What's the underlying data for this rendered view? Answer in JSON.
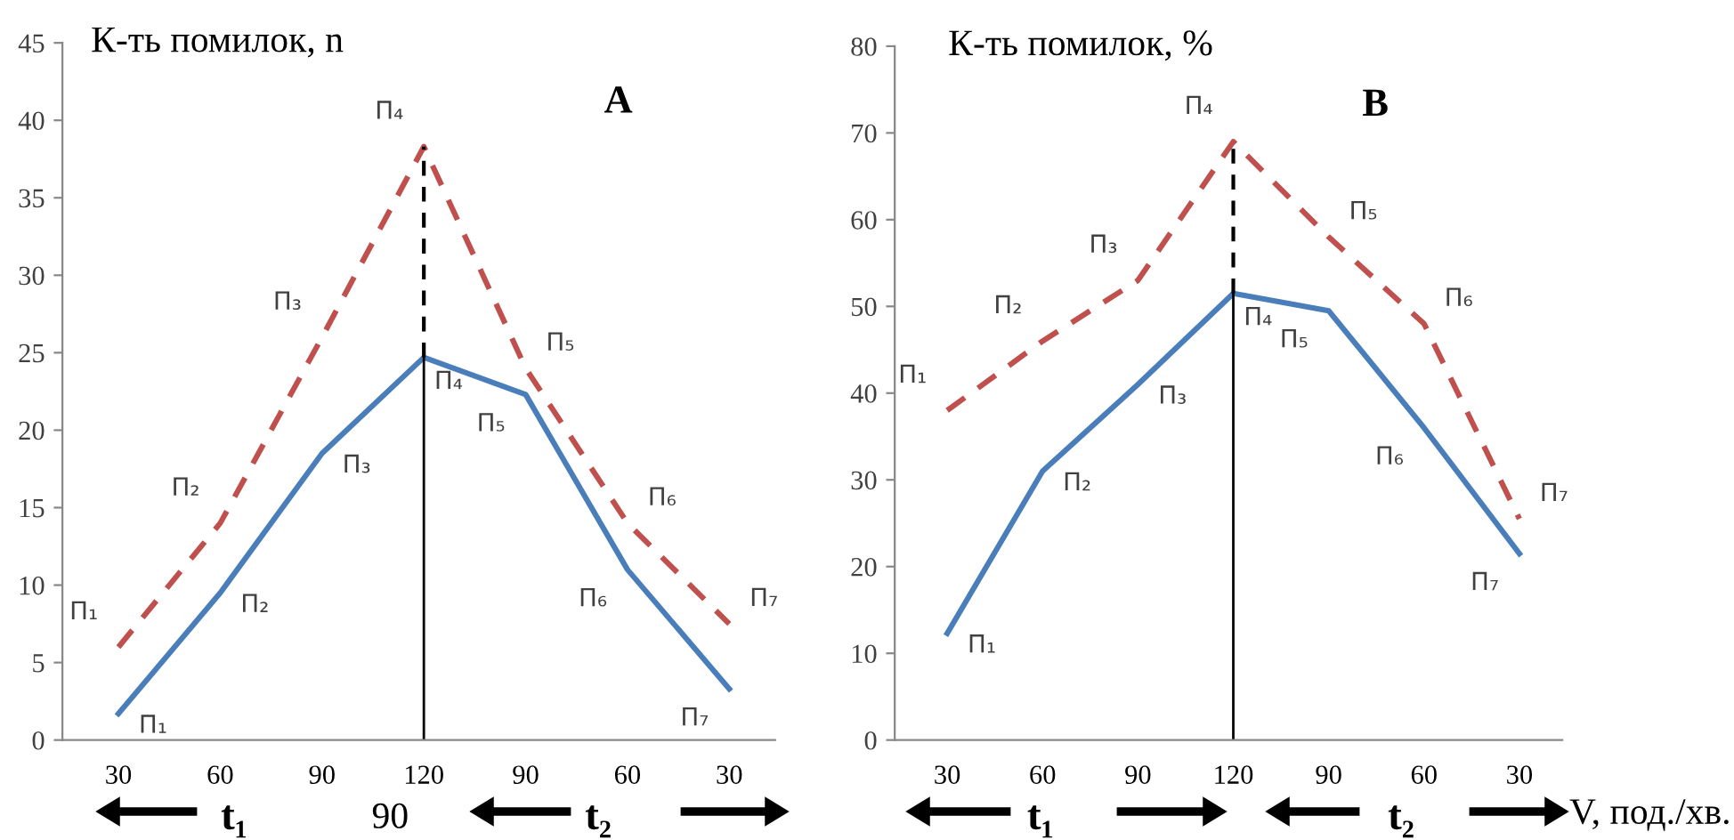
{
  "chart_data": [
    {
      "type": "line",
      "ylabel": "К-ть помилок, n",
      "categories": [
        "30",
        "60",
        "90",
        "120",
        "90",
        "60",
        "30"
      ],
      "ylim": [
        0,
        45
      ],
      "yticks": [
        0,
        5,
        10,
        15,
        20,
        25,
        30,
        35,
        40,
        45
      ],
      "grid": false,
      "legend": false,
      "series": [
        {
          "color": "#c0504d",
          "line_style": "dashed",
          "values": [
            6,
            14,
            26,
            38.3,
            24,
            14,
            7.5
          ],
          "value_labels": [
            "П₁",
            "П₂",
            "П₃",
            "П₄",
            "П₅",
            "П₆",
            "П₇"
          ]
        },
        {
          "color": "#4a7ebb",
          "line_style": "solid",
          "values": [
            1.7,
            9.5,
            18.5,
            24.7,
            22.3,
            11,
            3.3
          ],
          "value_labels": [
            "П₁",
            "П₂",
            "П₃",
            "П₄",
            "П₅",
            "П₆",
            "П₇"
          ]
        }
      ],
      "ref_lines": [
        {
          "axis": "x",
          "value": "120",
          "color": "#000000"
        }
      ],
      "annotations": [
        "А",
        "t₁",
        "90",
        "t₂"
      ]
    },
    {
      "type": "line",
      "ylabel": "К-ть помилок, %",
      "xlabel": "V, под./хв.",
      "categories": [
        "30",
        "60",
        "90",
        "120",
        "90",
        "60",
        "30"
      ],
      "ylim": [
        0,
        80
      ],
      "yticks": [
        0,
        10,
        20,
        30,
        40,
        50,
        60,
        70,
        80
      ],
      "grid": false,
      "legend": false,
      "series": [
        {
          "color": "#c0504d",
          "line_style": "dashed",
          "values": [
            38,
            46,
            53,
            69,
            58,
            48,
            25.5
          ],
          "value_labels": [
            "П₁",
            "П₂",
            "П₃",
            "П₄",
            "П₅",
            "П₆",
            "П₇"
          ]
        },
        {
          "color": "#4a7ebb",
          "line_style": "solid",
          "values": [
            12.3,
            31,
            41,
            51.5,
            49.5,
            36,
            21.5
          ],
          "value_labels": [
            "П₁",
            "П₂",
            "П₃",
            "П₄",
            "П₅",
            "П₆",
            "П₇"
          ]
        }
      ],
      "ref_lines": [
        {
          "axis": "x",
          "value": "120",
          "color": "#000000"
        }
      ],
      "annotations": [
        "В",
        "t₁",
        "t₂"
      ]
    }
  ]
}
